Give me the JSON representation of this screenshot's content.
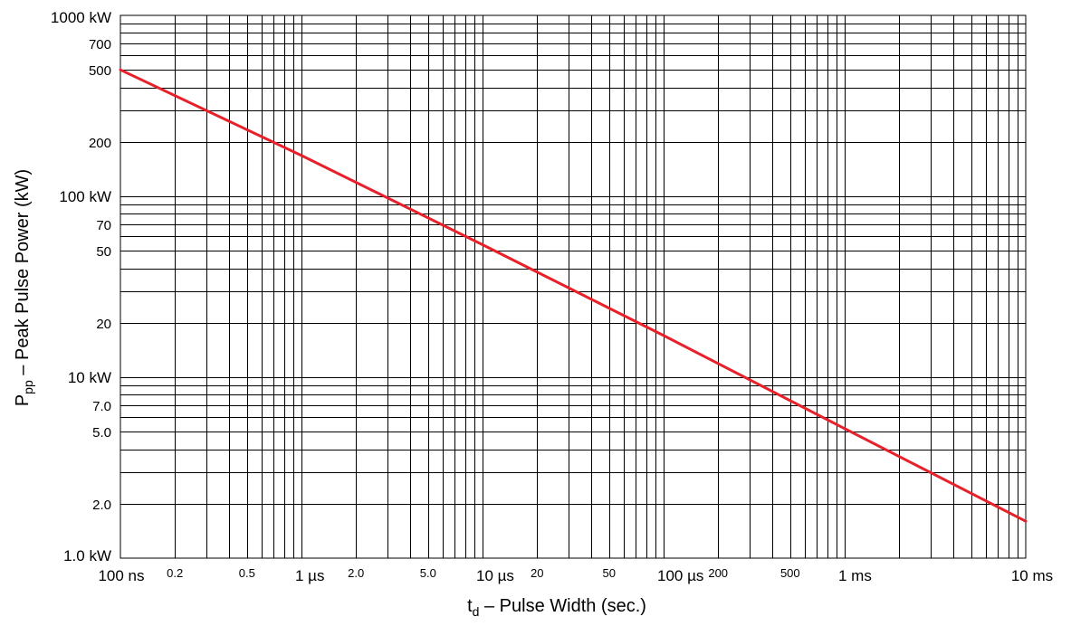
{
  "chart_data": {
    "type": "line",
    "title": "",
    "xlabel": "t",
    "xlabel_sub": "d",
    "xlabel_rest": " – Pulse Width (sec.)",
    "ylabel": "P",
    "ylabel_sub": "pp",
    "ylabel_rest": " – Peak Pulse Power (kW)",
    "xscale": "log",
    "yscale": "log",
    "xlim_seconds": [
      1e-07,
      0.01
    ],
    "ylim_kW": [
      1,
      1000
    ],
    "grid": true,
    "legend": "none",
    "x_tick_labels": [
      {
        "value": 1e-07,
        "label": "100 ns",
        "major": true
      },
      {
        "value": 2e-07,
        "label": "0.2",
        "major": false
      },
      {
        "value": 5e-07,
        "label": "0.5",
        "major": false
      },
      {
        "value": 1e-06,
        "label": "1 µs",
        "major": true
      },
      {
        "value": 2e-06,
        "label": "2.0",
        "major": false
      },
      {
        "value": 5e-06,
        "label": "5.0",
        "major": false
      },
      {
        "value": 1e-05,
        "label": "10 µs",
        "major": true
      },
      {
        "value": 2e-05,
        "label": "20",
        "major": false
      },
      {
        "value": 5e-05,
        "label": "50",
        "major": false
      },
      {
        "value": 0.0001,
        "label": "100 µs",
        "major": true
      },
      {
        "value": 0.0002,
        "label": "200",
        "major": false
      },
      {
        "value": 0.0005,
        "label": "500",
        "major": false
      },
      {
        "value": 0.001,
        "label": "1 ms",
        "major": true
      },
      {
        "value": 0.01,
        "label": "10 ms",
        "major": true
      }
    ],
    "y_tick_labels": [
      {
        "value": 1,
        "label": "1.0 kW",
        "major": true
      },
      {
        "value": 2,
        "label": "2.0",
        "major": false
      },
      {
        "value": 5,
        "label": "5.0",
        "major": false
      },
      {
        "value": 7,
        "label": "7.0",
        "major": false
      },
      {
        "value": 10,
        "label": "10 kW",
        "major": true
      },
      {
        "value": 20,
        "label": "20",
        "major": false
      },
      {
        "value": 50,
        "label": "50",
        "major": false
      },
      {
        "value": 70,
        "label": "70",
        "major": false
      },
      {
        "value": 100,
        "label": "100 kW",
        "major": true
      },
      {
        "value": 200,
        "label": "200",
        "major": false
      },
      {
        "value": 500,
        "label": "500",
        "major": false
      },
      {
        "value": 700,
        "label": "700",
        "major": false
      },
      {
        "value": 1000,
        "label": "1000 kW",
        "major": true
      }
    ],
    "series": [
      {
        "color": "#e8202a",
        "x_seconds": [
          1e-07,
          1e-06,
          1e-05,
          0.0001,
          0.001,
          0.01
        ],
        "y_kW": [
          500,
          168,
          54,
          17,
          5.2,
          1.6
        ]
      }
    ]
  }
}
